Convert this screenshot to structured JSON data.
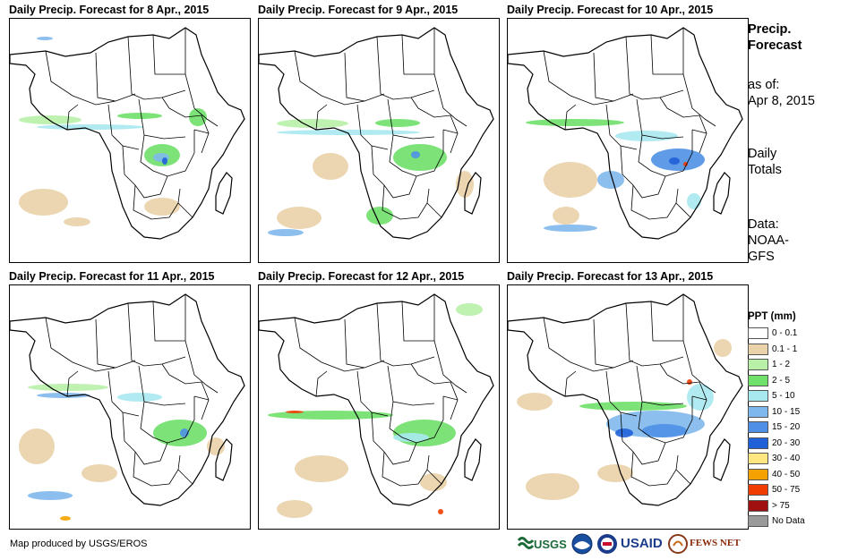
{
  "panels": [
    {
      "title": "Daily Precip. Forecast for 8 Apr., 2015"
    },
    {
      "title": "Daily Precip. Forecast for 9 Apr., 2015"
    },
    {
      "title": "Daily Precip. Forecast for 10 Apr., 2015"
    },
    {
      "title": "Daily Precip. Forecast for 11 Apr., 2015"
    },
    {
      "title": "Daily Precip. Forecast for 12 Apr., 2015"
    },
    {
      "title": "Daily Precip. Forecast for 13 Apr., 2015"
    }
  ],
  "side": {
    "title_line1": "Precip.",
    "title_line2": "Forecast",
    "asof_label": "as of:",
    "asof_date": "Apr 8, 2015",
    "totals_line1": "Daily",
    "totals_line2": "Totals",
    "data_line1": "Data:",
    "data_line2": "NOAA-",
    "data_line3": "GFS"
  },
  "legend": {
    "title": "PPT (mm)",
    "items": [
      {
        "label": "0 - 0.1",
        "color": "#ffffff"
      },
      {
        "label": "0.1 - 1",
        "color": "#ead2a9"
      },
      {
        "label": "1 - 2",
        "color": "#b8f0a8"
      },
      {
        "label": "2 - 5",
        "color": "#6fe06a"
      },
      {
        "label": "5 - 10",
        "color": "#a8e9ef"
      },
      {
        "label": "10 - 15",
        "color": "#7fb8ec"
      },
      {
        "label": "15 - 20",
        "color": "#4f90e6"
      },
      {
        "label": "20 - 30",
        "color": "#2060d8"
      },
      {
        "label": "30 - 40",
        "color": "#ffe680"
      },
      {
        "label": "40 - 50",
        "color": "#f5a200"
      },
      {
        "label": "50 - 75",
        "color": "#f03c00"
      },
      {
        "label": "> 75",
        "color": "#a01010"
      },
      {
        "label": "No Data",
        "color": "#9a9a9a"
      }
    ]
  },
  "footer": {
    "credit": "Map produced by USGS/EROS",
    "logos": {
      "usgs": "USGS",
      "usaid": "USAID",
      "fewsnet": "FEWS NET"
    }
  }
}
